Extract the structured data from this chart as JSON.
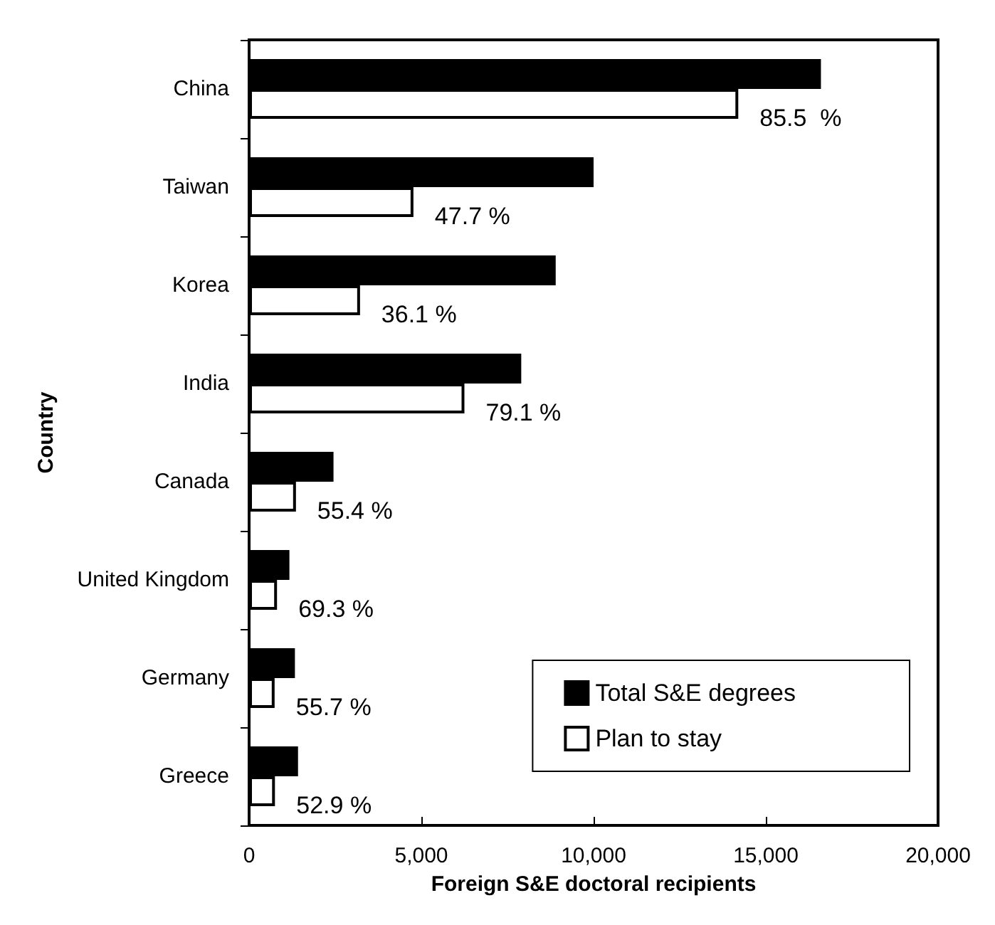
{
  "chart_data": {
    "type": "bar",
    "orientation": "horizontal",
    "xlabel": "Foreign S&E doctoral recipients",
    "ylabel": "Country",
    "categories": [
      "China",
      "Taiwan",
      "Korea",
      "India",
      "Canada",
      "United Kingdom",
      "Germany",
      "Greece"
    ],
    "series": [
      {
        "name": "Total S&E degrees",
        "color": "#000000",
        "values": [
          16600,
          10000,
          8900,
          7900,
          2450,
          1170,
          1330,
          1420
        ]
      },
      {
        "name": "Plan to stay",
        "color": "#ffffff",
        "values": [
          14200,
          4770,
          3220,
          6250,
          1360,
          810,
          740,
          750
        ]
      }
    ],
    "annotations": [
      {
        "text": "85.5  %",
        "x": 14200,
        "y": "China"
      },
      {
        "text": "47.7 %",
        "x": 4770,
        "y": "Taiwan"
      },
      {
        "text": "36.1 %",
        "x": 3220,
        "y": "Korea"
      },
      {
        "text": "79.1 %",
        "x": 6250,
        "y": "India"
      },
      {
        "text": "55.4 %",
        "x": 1360,
        "y": "Canada"
      },
      {
        "text": "69.3 %",
        "x": 810,
        "y": "United Kingdom"
      },
      {
        "text": "55.7 %",
        "x": 740,
        "y": "Germany"
      },
      {
        "text": "52.9 %",
        "x": 750,
        "y": "Greece"
      }
    ],
    "xlim": [
      0,
      20000
    ],
    "xticks": [
      0,
      {
        "value": 5000,
        "label": "5,000"
      },
      {
        "value": 10000,
        "label": "10,000"
      },
      {
        "value": 15000,
        "label": "15,000"
      },
      {
        "value": 20000,
        "label": "20,000"
      }
    ],
    "grid": false,
    "legend": "bottom right"
  }
}
